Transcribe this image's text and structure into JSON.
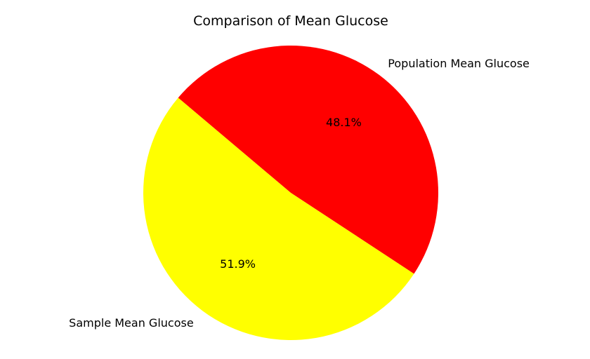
{
  "chart_data": {
    "type": "pie",
    "title": "Comparison of Mean Glucose",
    "slices": [
      {
        "label": "Population Mean Glucose",
        "value": 48.1,
        "pct_label": "48.1%",
        "color": "#ff0000"
      },
      {
        "label": "Sample Mean Glucose",
        "value": 51.9,
        "pct_label": "51.9%",
        "color": "#ffff00"
      }
    ],
    "legend": "none",
    "grid": false
  }
}
